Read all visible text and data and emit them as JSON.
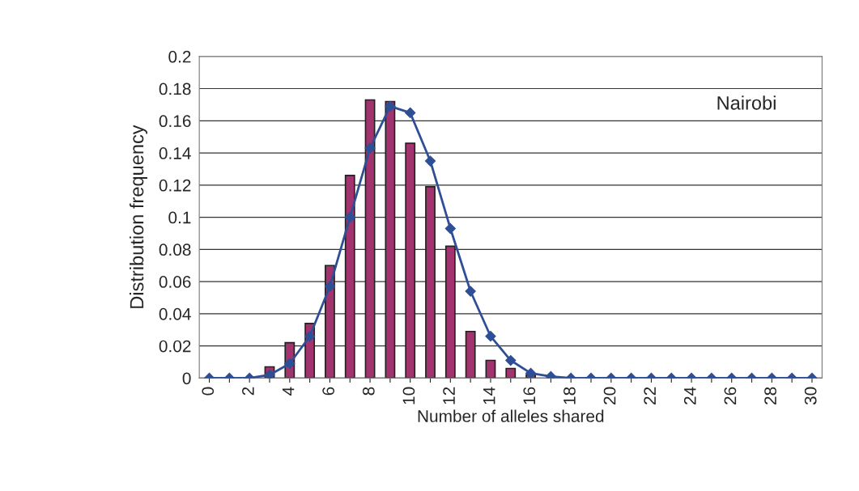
{
  "chart_data": {
    "type": "bar",
    "categories": [
      "0",
      null,
      "2",
      null,
      "4",
      null,
      "6",
      null,
      "8",
      null,
      "10",
      null,
      "12",
      null,
      "14",
      null,
      "16",
      null,
      "18",
      null,
      "20",
      null,
      "22",
      null,
      "24",
      null,
      "26",
      null,
      "28",
      null,
      "30"
    ],
    "series": [
      {
        "color": "#a3336e",
        "values": [
          0,
          0,
          0,
          0.007,
          0.022,
          0.034,
          0.07,
          0.126,
          0.173,
          0.172,
          0.146,
          0.119,
          0.082,
          0.029,
          0.011,
          0.006,
          0.002,
          0,
          0,
          0,
          0,
          0,
          0,
          0,
          0,
          0,
          0,
          0,
          0,
          0,
          0
        ]
      },
      {
        "type": "line",
        "color": "#2e4f96",
        "marker": "diamond",
        "values": [
          0,
          0,
          0,
          0.002,
          0.009,
          0.026,
          0.057,
          0.1,
          0.143,
          0.169,
          0.165,
          0.135,
          0.093,
          0.054,
          0.026,
          0.011,
          0.003,
          0.001,
          0,
          0,
          0,
          0,
          0,
          0,
          0,
          0,
          0,
          0,
          0,
          0,
          0
        ]
      }
    ],
    "xlabel": "Number of alleles shared",
    "ylabel": "Distribution frequency",
    "ylim": [
      0,
      0.2
    ],
    "yticks": [
      0,
      0.02,
      0.04,
      0.06,
      0.08,
      0.1,
      0.12,
      0.14,
      0.16,
      0.18,
      0.2
    ],
    "grid": "y",
    "annotations": [
      {
        "text": "Nairobi"
      }
    ]
  }
}
